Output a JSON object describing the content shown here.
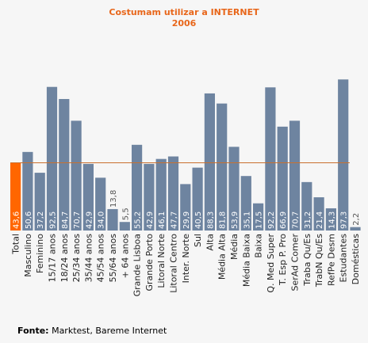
{
  "chart_data": {
    "type": "bar",
    "title": "Costumam utilizar a INTERNET",
    "subtitle": "2006",
    "categories": [
      "Total",
      "Masculino",
      "Feminino",
      "15/17 anos",
      "18/24 anos",
      "25/34 anos",
      "35/44 anos",
      "45/54 anos",
      "55/64 anos",
      "+ 64 anos",
      "Grande Lisboa",
      "Grande Porto",
      "Litoral Norte",
      "Litoral Centro",
      "Inter. Norte",
      "Sul",
      "Alta",
      "Média Alta",
      "Média",
      "Média Baixa",
      "Baixa",
      "Q. Med Super",
      "T. Esp P. Pro",
      "SerAd Comer",
      "Traba Qu/Es",
      "TrabN Qu/Es",
      "RefPe Desm",
      "Estudantes",
      "Domésticas"
    ],
    "values": [
      43.6,
      50.6,
      37.2,
      92.5,
      84.7,
      70.7,
      42.9,
      34.0,
      13.8,
      5.5,
      55.2,
      42.9,
      46.1,
      47.7,
      29.9,
      40.5,
      88.3,
      81.8,
      53.9,
      35.1,
      17.5,
      92.2,
      66.9,
      70.7,
      31.2,
      21.4,
      14.3,
      97.3,
      2.2
    ],
    "value_labels": [
      "43,6",
      "50,6",
      "37,2",
      "92,5",
      "84,7",
      "70,7",
      "42,9",
      "34,0",
      "13,8",
      "5,5",
      "55,2",
      "42,9",
      "46,1",
      "47,7",
      "29,9",
      "40,5",
      "88,3",
      "81,8",
      "53,9",
      "35,1",
      "17,5",
      "92,2",
      "66,9",
      "70,7",
      "31,2",
      "21,4",
      "14,3",
      "97,3",
      "2,2"
    ],
    "highlight_index": 0,
    "reference_value": 43.6,
    "ylim": [
      0,
      100
    ],
    "grid": false,
    "colors": {
      "bar": "#6e84a0",
      "highlight": "#ff6600",
      "reference_line": "#c9702e",
      "title": "#e8661a"
    }
  },
  "source": {
    "label": "Fonte:",
    "text": "Marktest, Bareme Internet"
  }
}
